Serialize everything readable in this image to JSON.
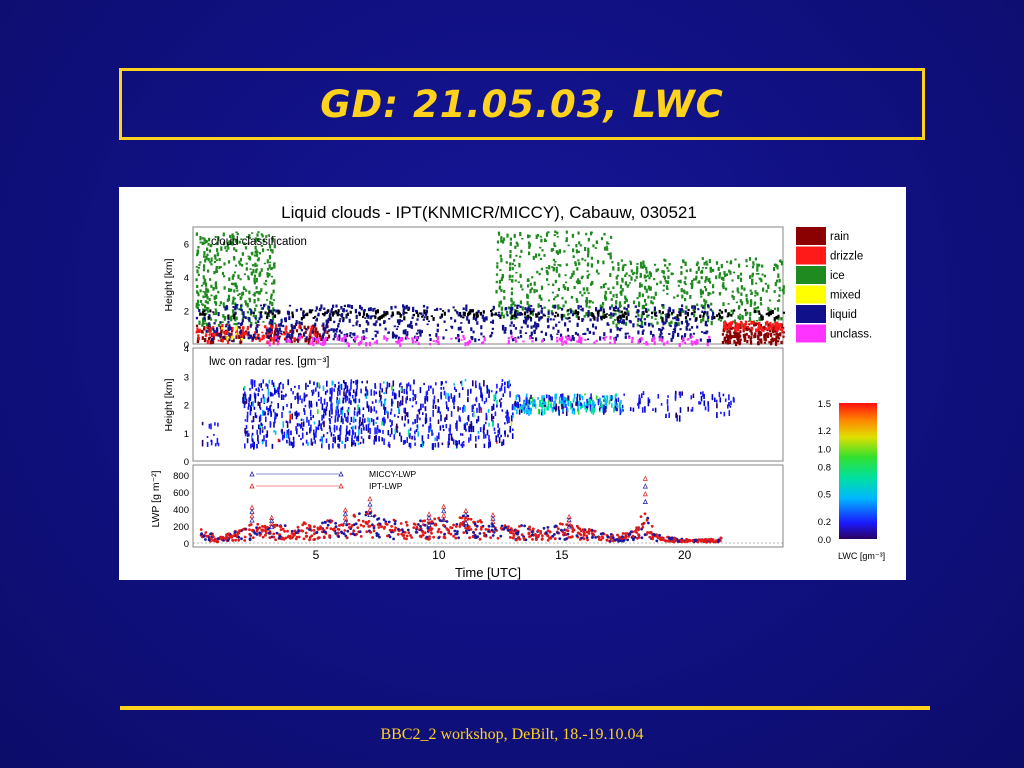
{
  "slide": {
    "title": "GD: 21.05.03, LWC",
    "footer": "BBC2_2 workshop, DeBilt, 18.-19.10.04"
  },
  "colors": {
    "background": "#10107f",
    "accent": "#ffd21e"
  },
  "chart_data": {
    "type": "heatmap",
    "title": "Liquid clouds - IPT(KNMICR/MICCY), Cabauw, 030521",
    "xlabel": "Time [UTC]",
    "xlim": [
      0,
      24
    ],
    "x_ticks": [
      "5",
      "10",
      "15",
      "20"
    ],
    "panels": [
      {
        "label": "cloud classification",
        "ylabel": "Height [km]",
        "ylim": [
          0,
          7
        ],
        "y_ticks": [
          "0",
          "2",
          "4",
          "6"
        ],
        "legend": [
          {
            "name": "rain",
            "color": "#8b0000"
          },
          {
            "name": "drizzle",
            "color": "#ff1a1a"
          },
          {
            "name": "ice",
            "color": "#1f8a1f"
          },
          {
            "name": "mixed",
            "color": "#ffff00"
          },
          {
            "name": "liquid",
            "color": "#10108a"
          },
          {
            "name": "unclass.",
            "color": "#ff33ff"
          }
        ]
      },
      {
        "label": "lwc on radar res. [gm⁻³]",
        "ylabel": "Height [km]",
        "ylim": [
          0,
          4
        ],
        "y_ticks": [
          "0",
          "1",
          "2",
          "3",
          "4"
        ],
        "colorbar": {
          "label": "LWC [gm⁻³]",
          "ticks": [
            "1.5",
            "1.2",
            "1.0",
            "0.8",
            "0.5",
            "0.2",
            "0.0"
          ]
        }
      },
      {
        "ylabel": "LWP [g m⁻²]",
        "ylim": [
          0,
          800
        ],
        "y_ticks": [
          "0",
          "200",
          "400",
          "600",
          "800"
        ],
        "series": [
          {
            "name": "MICCY-LWP",
            "color": "#1a1aa0"
          },
          {
            "name": "IPT-LWP",
            "color": "#e01a1a"
          }
        ],
        "lwp_profile": [
          [
            0.3,
            150
          ],
          [
            1.0,
            60
          ],
          [
            2.0,
            130
          ],
          [
            2.5,
            210
          ],
          [
            3.0,
            150
          ],
          [
            3.5,
            190
          ],
          [
            4.0,
            170
          ],
          [
            4.5,
            200
          ],
          [
            5.0,
            160
          ],
          [
            5.5,
            220
          ],
          [
            6.0,
            180
          ],
          [
            6.5,
            260
          ],
          [
            7.0,
            330
          ],
          [
            7.5,
            250
          ],
          [
            8.0,
            240
          ],
          [
            8.5,
            200
          ],
          [
            9.0,
            230
          ],
          [
            9.5,
            210
          ],
          [
            10.0,
            250
          ],
          [
            10.5,
            190
          ],
          [
            11.0,
            280
          ],
          [
            11.5,
            210
          ],
          [
            12.0,
            240
          ],
          [
            12.5,
            180
          ],
          [
            13.0,
            150
          ],
          [
            13.5,
            170
          ],
          [
            14.0,
            130
          ],
          [
            14.5,
            150
          ],
          [
            15.0,
            200
          ],
          [
            15.5,
            170
          ],
          [
            16.0,
            140
          ],
          [
            16.5,
            110
          ],
          [
            17.0,
            80
          ],
          [
            17.5,
            100
          ],
          [
            18.0,
            120
          ],
          [
            18.4,
            350
          ],
          [
            18.8,
            90
          ],
          [
            19.5,
            50
          ],
          [
            20.5,
            30
          ],
          [
            21.5,
            50
          ]
        ],
        "spikes": [
          [
            2.4,
            420
          ],
          [
            3.2,
            300
          ],
          [
            6.2,
            390
          ],
          [
            7.2,
            520
          ],
          [
            9.6,
            340
          ],
          [
            10.2,
            430
          ],
          [
            11.1,
            380
          ],
          [
            12.2,
            330
          ],
          [
            15.3,
            310
          ],
          [
            18.4,
            760
          ]
        ]
      }
    ]
  }
}
